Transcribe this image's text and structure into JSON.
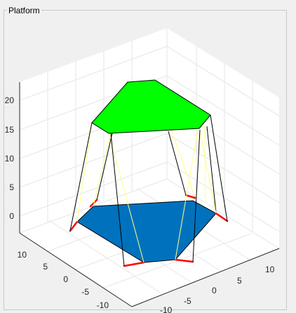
{
  "panel": {
    "title": "Platform"
  },
  "axes": {
    "z_ticks": [
      "20",
      "15",
      "10",
      "5",
      "0"
    ],
    "y_ticks": [
      "10",
      "5",
      "0",
      "-5",
      "-10"
    ],
    "x_ticks": [
      "10",
      "5",
      "0",
      "-5",
      "-10"
    ]
  },
  "colors": {
    "top_platform": "#00ff00",
    "base_platform": "#0072bd",
    "legs": "#000000",
    "struts": "#ffff80",
    "base_links": "#ff0000"
  }
}
